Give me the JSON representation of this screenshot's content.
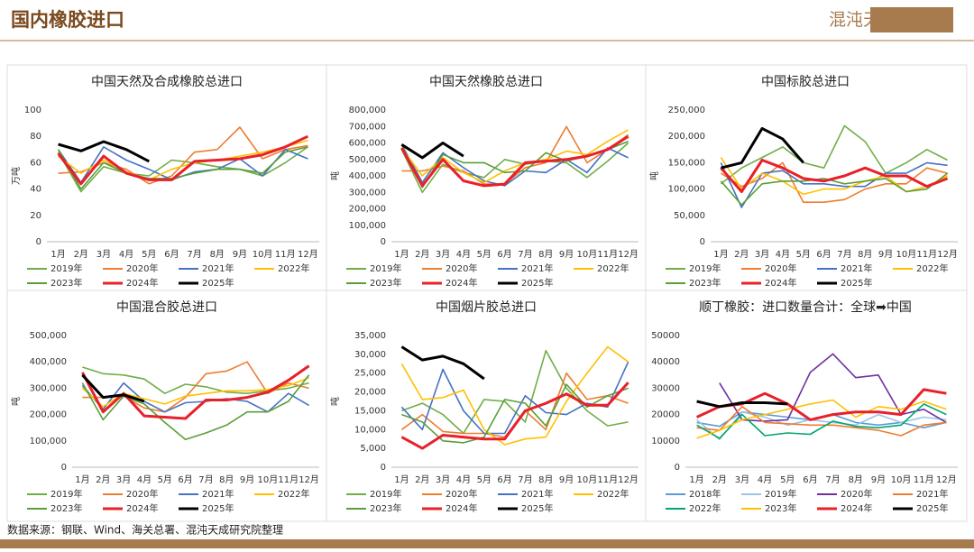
{
  "header": {
    "title": "国内橡胶进口",
    "brand": "混沌天成研究院"
  },
  "footer": {
    "source": "数据来源：钢联、Wind、海关总署、混沌天成研究院整理"
  },
  "chart_data": [
    {
      "type": "line",
      "title": "中国天然及合成橡胶总进口",
      "y_label": "万吨",
      "categories": [
        "1月",
        "2月",
        "3月",
        "4月",
        "5月",
        "6月",
        "7月",
        "8月",
        "9月",
        "10月",
        "11月",
        "12月"
      ],
      "ylim": [
        0,
        100
      ],
      "yticks": [
        0,
        20,
        40,
        60,
        80,
        100
      ],
      "series": [
        {
          "name": "2019年",
          "color": "#70ad47",
          "values": [
            68,
            38,
            57,
            52,
            50,
            62,
            60,
            57,
            55,
            50,
            60,
            72
          ]
        },
        {
          "name": "2020年",
          "color": "#ed7d31",
          "values": [
            52,
            53,
            60,
            55,
            44,
            50,
            68,
            70,
            87,
            63,
            70,
            73
          ]
        },
        {
          "name": "2021年",
          "color": "#4472c4",
          "values": [
            70,
            45,
            72,
            62,
            55,
            47,
            53,
            55,
            63,
            50,
            70,
            63
          ]
        },
        {
          "name": "2022年",
          "color": "#ffc000",
          "values": [
            65,
            52,
            62,
            53,
            47,
            55,
            60,
            62,
            65,
            68,
            72,
            77
          ]
        },
        {
          "name": "2023年",
          "color": "#5a9e3a",
          "values": [
            70,
            40,
            60,
            52,
            48,
            48,
            52,
            55,
            55,
            52,
            68,
            72
          ]
        },
        {
          "name": "2024年",
          "color": "#e8202a",
          "values": [
            67,
            44,
            65,
            52,
            47,
            47,
            61,
            62,
            63,
            66,
            72,
            80
          ]
        },
        {
          "name": "2025年",
          "color": "#000000",
          "values": [
            74,
            69,
            76,
            70,
            61,
            null,
            null,
            null,
            null,
            null,
            null,
            null
          ]
        }
      ]
    },
    {
      "type": "line",
      "title": "中国天然橡胶总进口",
      "y_label": "吨",
      "categories": [
        "1月",
        "2月",
        "3月",
        "4月",
        "5月",
        "6月",
        "7月",
        "8月",
        "9月",
        "10月",
        "11月",
        "12月"
      ],
      "ylim": [
        0,
        800000
      ],
      "yticks": [
        0,
        {
          "value": 100000,
          "label": "100,000"
        },
        {
          "value": 200000,
          "label": "200,000"
        },
        {
          "value": 300000,
          "label": "300,000"
        },
        {
          "value": 400000,
          "label": "400,000"
        },
        {
          "value": 500000,
          "label": "500,000"
        },
        {
          "value": 600000,
          "label": "600,000"
        },
        {
          "value": 700000,
          "label": "700,000"
        },
        {
          "value": 800000,
          "label": "800,000"
        }
      ],
      "series": [
        {
          "name": "2019年",
          "color": "#70ad47",
          "values": [
            560000,
            300000,
            470000,
            420000,
            390000,
            500000,
            470000,
            490000,
            480000,
            390000,
            490000,
            600000
          ]
        },
        {
          "name": "2020年",
          "color": "#ed7d31",
          "values": [
            430000,
            430000,
            460000,
            430000,
            350000,
            350000,
            450000,
            480000,
            700000,
            480000,
            560000,
            650000
          ]
        },
        {
          "name": "2021年",
          "color": "#4472c4",
          "values": [
            590000,
            360000,
            540000,
            450000,
            370000,
            340000,
            430000,
            420000,
            500000,
            420000,
            570000,
            510000
          ]
        },
        {
          "name": "2022年",
          "color": "#ffc000",
          "values": [
            570000,
            400000,
            510000,
            420000,
            360000,
            430000,
            480000,
            500000,
            550000,
            530000,
            610000,
            680000
          ]
        },
        {
          "name": "2023年",
          "color": "#5a9e3a",
          "values": [
            590000,
            330000,
            530000,
            480000,
            480000,
            420000,
            430000,
            540000,
            490000,
            520000,
            560000,
            610000
          ]
        },
        {
          "name": "2024年",
          "color": "#e8202a",
          "values": [
            570000,
            340000,
            500000,
            370000,
            340000,
            350000,
            480000,
            490000,
            500000,
            520000,
            560000,
            640000
          ]
        },
        {
          "name": "2025年",
          "color": "#000000",
          "values": [
            590000,
            510000,
            600000,
            520000,
            null,
            null,
            null,
            null,
            null,
            null,
            null,
            null
          ]
        }
      ]
    },
    {
      "type": "line",
      "title": "中国标胶总进口",
      "y_label": "吨",
      "categories": [
        "1月",
        "2月",
        "3月",
        "4月",
        "5月",
        "6月",
        "7月",
        "8月",
        "9月",
        "10月",
        "11月",
        "12月"
      ],
      "ylim": [
        0,
        250000
      ],
      "yticks": [
        0,
        {
          "value": 50000,
          "label": "50,000"
        },
        {
          "value": 100000,
          "label": "100,000"
        },
        {
          "value": 150000,
          "label": "150,000"
        },
        {
          "value": 200000,
          "label": "200,000"
        },
        {
          "value": 250000,
          "label": "250,000"
        }
      ],
      "series": [
        {
          "name": "2019年",
          "color": "#70ad47",
          "values": [
            110000,
            140000,
            160000,
            180000,
            150000,
            140000,
            220000,
            190000,
            130000,
            150000,
            175000,
            155000
          ]
        },
        {
          "name": "2020年",
          "color": "#ed7d31",
          "values": [
            130000,
            105000,
            120000,
            150000,
            75000,
            75000,
            80000,
            100000,
            110000,
            110000,
            140000,
            130000
          ]
        },
        {
          "name": "2021年",
          "color": "#4472c4",
          "values": [
            150000,
            65000,
            130000,
            135000,
            110000,
            110000,
            105000,
            105000,
            130000,
            130000,
            150000,
            145000
          ]
        },
        {
          "name": "2022年",
          "color": "#ffc000",
          "values": [
            160000,
            100000,
            130000,
            115000,
            90000,
            100000,
            100000,
            115000,
            125000,
            95000,
            105000,
            125000
          ]
        },
        {
          "name": "2023年",
          "color": "#5a9e3a",
          "values": [
            115000,
            70000,
            110000,
            115000,
            115000,
            120000,
            110000,
            115000,
            120000,
            95000,
            100000,
            130000
          ]
        },
        {
          "name": "2024年",
          "color": "#e8202a",
          "values": [
            140000,
            95000,
            155000,
            140000,
            120000,
            115000,
            125000,
            140000,
            125000,
            125000,
            105000,
            120000
          ]
        },
        {
          "name": "2025年",
          "color": "#000000",
          "values": [
            140000,
            150000,
            215000,
            195000,
            150000,
            null,
            null,
            null,
            null,
            null,
            null,
            null
          ]
        }
      ]
    },
    {
      "type": "line",
      "title": "中国混合胶总进口",
      "y_label": "吨",
      "categories": [
        "1月",
        "2月",
        "3月",
        "4月",
        "5月",
        "6月",
        "7月",
        "8月",
        "9月",
        "10月",
        "11月",
        "12月"
      ],
      "ylim": [
        0,
        500000
      ],
      "yticks": [
        0,
        {
          "value": 100000,
          "label": "100,000"
        },
        {
          "value": 200000,
          "label": "200,000"
        },
        {
          "value": 300000,
          "label": "300,000"
        },
        {
          "value": 400000,
          "label": "400,000"
        },
        {
          "value": 500000,
          "label": "500,000"
        }
      ],
      "series": [
        {
          "name": "2019年",
          "color": "#70ad47",
          "values": [
            380000,
            355000,
            350000,
            335000,
            280000,
            315000,
            305000,
            285000,
            280000,
            290000,
            300000,
            320000
          ]
        },
        {
          "name": "2020年",
          "color": "#ed7d31",
          "values": [
            265000,
            265000,
            270000,
            225000,
            210000,
            265000,
            355000,
            365000,
            400000,
            280000,
            320000,
            300000
          ]
        },
        {
          "name": "2021年",
          "color": "#4472c4",
          "values": [
            310000,
            220000,
            320000,
            250000,
            210000,
            245000,
            250000,
            260000,
            250000,
            210000,
            280000,
            235000
          ]
        },
        {
          "name": "2022年",
          "color": "#ffc000",
          "values": [
            300000,
            230000,
            280000,
            260000,
            240000,
            270000,
            280000,
            290000,
            290000,
            295000,
            310000,
            340000
          ]
        },
        {
          "name": "2023年",
          "color": "#5a9e3a",
          "values": [
            320000,
            180000,
            270000,
            240000,
            170000,
            105000,
            130000,
            160000,
            210000,
            210000,
            250000,
            350000
          ]
        },
        {
          "name": "2024年",
          "color": "#e8202a",
          "values": [
            360000,
            210000,
            280000,
            195000,
            190000,
            185000,
            255000,
            255000,
            265000,
            285000,
            330000,
            385000
          ]
        },
        {
          "name": "2025年",
          "color": "#000000",
          "values": [
            350000,
            265000,
            275000,
            250000,
            null,
            null,
            null,
            null,
            null,
            null,
            null,
            null
          ]
        }
      ]
    },
    {
      "type": "line",
      "title": "中国烟片胶总进口",
      "y_label": "吨",
      "categories": [
        "1月",
        "2月",
        "3月",
        "4月",
        "5月",
        "6月",
        "7月",
        "8月",
        "9月",
        "10月",
        "11月",
        "12月"
      ],
      "ylim": [
        0,
        35000
      ],
      "yticks": [
        0,
        {
          "value": 5000,
          "label": "5,000"
        },
        {
          "value": 10000,
          "label": "10,000"
        },
        {
          "value": 15000,
          "label": "15,000"
        },
        {
          "value": 20000,
          "label": "20,000"
        },
        {
          "value": 25000,
          "label": "25,000"
        },
        {
          "value": 30000,
          "label": "30,000"
        },
        {
          "value": 35000,
          "label": "35,000"
        }
      ],
      "series": [
        {
          "name": "2019年",
          "color": "#70ad47",
          "values": [
            15000,
            17000,
            14000,
            9000,
            18000,
            17500,
            12000,
            31000,
            21000,
            15000,
            11000,
            12000
          ]
        },
        {
          "name": "2020年",
          "color": "#ed7d31",
          "values": [
            10000,
            14000,
            9500,
            9000,
            9000,
            8000,
            15000,
            10000,
            25000,
            18000,
            19000,
            17000
          ]
        },
        {
          "name": "2021年",
          "color": "#4472c4",
          "values": [
            16000,
            10000,
            26000,
            15000,
            9000,
            9000,
            19000,
            14500,
            14000,
            17000,
            16000,
            28000
          ]
        },
        {
          "name": "2022年",
          "color": "#ffc000",
          "values": [
            27500,
            18000,
            18500,
            20500,
            10000,
            6000,
            7500,
            8000,
            17500,
            25000,
            32000,
            28000
          ]
        },
        {
          "name": "2023年",
          "color": "#5a9e3a",
          "values": [
            14000,
            12000,
            7000,
            6500,
            8000,
            18000,
            17000,
            11000,
            22000,
            16000,
            19000,
            21000
          ]
        },
        {
          "name": "2024年",
          "color": "#e8202a",
          "values": [
            8000,
            5000,
            8500,
            8000,
            7500,
            7500,
            15000,
            17000,
            19500,
            16500,
            16500,
            22500
          ]
        },
        {
          "name": "2025年",
          "color": "#000000",
          "values": [
            32000,
            28500,
            29500,
            27500,
            23500,
            null,
            null,
            null,
            null,
            null,
            null,
            null
          ]
        }
      ]
    },
    {
      "type": "line",
      "title": "顺丁橡胶：进口数量合计：全球➡中国",
      "categories": [
        "1月",
        "2月",
        "3月",
        "4月",
        "5月",
        "6月",
        "7月",
        "8月",
        "9月",
        "10月",
        "11月",
        "12月"
      ],
      "ylim": [
        0,
        50000
      ],
      "yticks": [
        0,
        10000,
        20000,
        30000,
        40000,
        50000
      ],
      "series": [
        {
          "name": "2018年",
          "color": "#5b9bd5",
          "values": [
            17000,
            15500,
            21000,
            20000,
            19000,
            18000,
            20000,
            17000,
            16000,
            17000,
            15000,
            17000
          ]
        },
        {
          "name": "2019年",
          "color": "#9dc3e6",
          "values": [
            18000,
            10500,
            21000,
            19000,
            16000,
            18000,
            17000,
            16000,
            20000,
            17000,
            19000,
            18000
          ]
        },
        {
          "name": "2020年",
          "color": "#7030a0",
          "values": [
            null,
            32000,
            18000,
            17500,
            18000,
            36000,
            43000,
            34000,
            35000,
            20000,
            22000,
            17000
          ]
        },
        {
          "name": "2021年",
          "color": "#ed7d31",
          "values": [
            15000,
            14000,
            23000,
            17000,
            16500,
            16000,
            16000,
            15000,
            14000,
            12000,
            16000,
            17000
          ]
        },
        {
          "name": "2022年",
          "color": "#00a86b",
          "values": [
            16000,
            11000,
            20000,
            12000,
            13000,
            12500,
            17500,
            15500,
            15000,
            16000,
            24000,
            20000
          ]
        },
        {
          "name": "2023年",
          "color": "#ffc000",
          "values": [
            11000,
            14000,
            18000,
            20000,
            22000,
            24000,
            25500,
            19000,
            23000,
            22000,
            25000,
            22000
          ]
        },
        {
          "name": "2024年",
          "color": "#e8202a",
          "values": [
            19000,
            23000,
            24000,
            28000,
            24000,
            18000,
            20000,
            21000,
            21000,
            20000,
            29500,
            28000
          ]
        },
        {
          "name": "2025年",
          "color": "#000000",
          "values": [
            25000,
            23000,
            24500,
            24500,
            24000,
            null,
            null,
            null,
            null,
            null,
            null,
            null
          ]
        }
      ]
    }
  ]
}
